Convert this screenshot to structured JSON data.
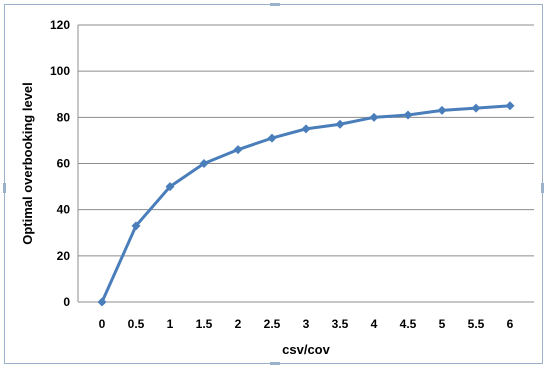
{
  "chart_data": {
    "type": "line",
    "title": "",
    "xlabel": "csv/cov",
    "ylabel": "Optimal overbooking level",
    "x": [
      0,
      0.5,
      1,
      1.5,
      2,
      2.5,
      3,
      3.5,
      4,
      4.5,
      5,
      5.5,
      6
    ],
    "x_tick_labels": [
      "0",
      "0.5",
      "1",
      "1.5",
      "2",
      "2.5",
      "3",
      "3.5",
      "4",
      "4.5",
      "5",
      "5.5",
      "6"
    ],
    "series": [
      {
        "values": [
          0,
          33,
          50,
          60,
          66,
          71,
          75,
          77,
          80,
          81,
          83,
          84,
          85
        ]
      }
    ],
    "ylim": [
      0,
      120
    ],
    "y_ticks": [
      0,
      20,
      40,
      60,
      80,
      100,
      120
    ],
    "y_tick_labels": [
      "0",
      "20",
      "40",
      "60",
      "80",
      "100",
      "120"
    ],
    "grid": "horizontal",
    "legend": "none",
    "colors": {
      "series": "#4a7ebb",
      "grid": "#8c8c8c",
      "frame": "#9bb1c9"
    }
  }
}
